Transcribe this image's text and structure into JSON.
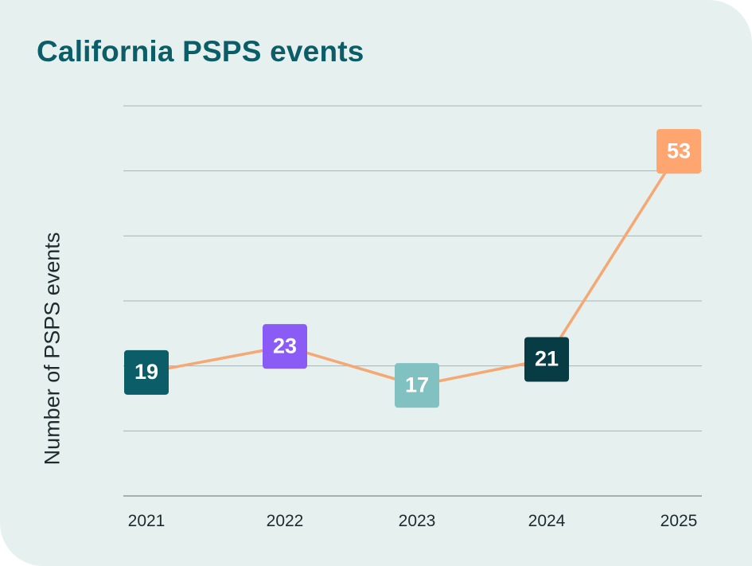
{
  "chart_data": {
    "type": "line",
    "title": "California PSPS events",
    "ylabel": "Number of PSPS events",
    "xlabel": "",
    "x": [
      "2021",
      "2022",
      "2023",
      "2024",
      "2025"
    ],
    "values": [
      19,
      23,
      17,
      21,
      53
    ],
    "ylim": [
      0,
      60
    ],
    "grid": true,
    "colors": {
      "line": "#f5a774",
      "markers": [
        "#0b5d67",
        "#8a5cf5",
        "#82c1c2",
        "#073c45",
        "#ffa56f"
      ],
      "grid": "#a9b4b4",
      "title": "#0b5d67"
    }
  }
}
